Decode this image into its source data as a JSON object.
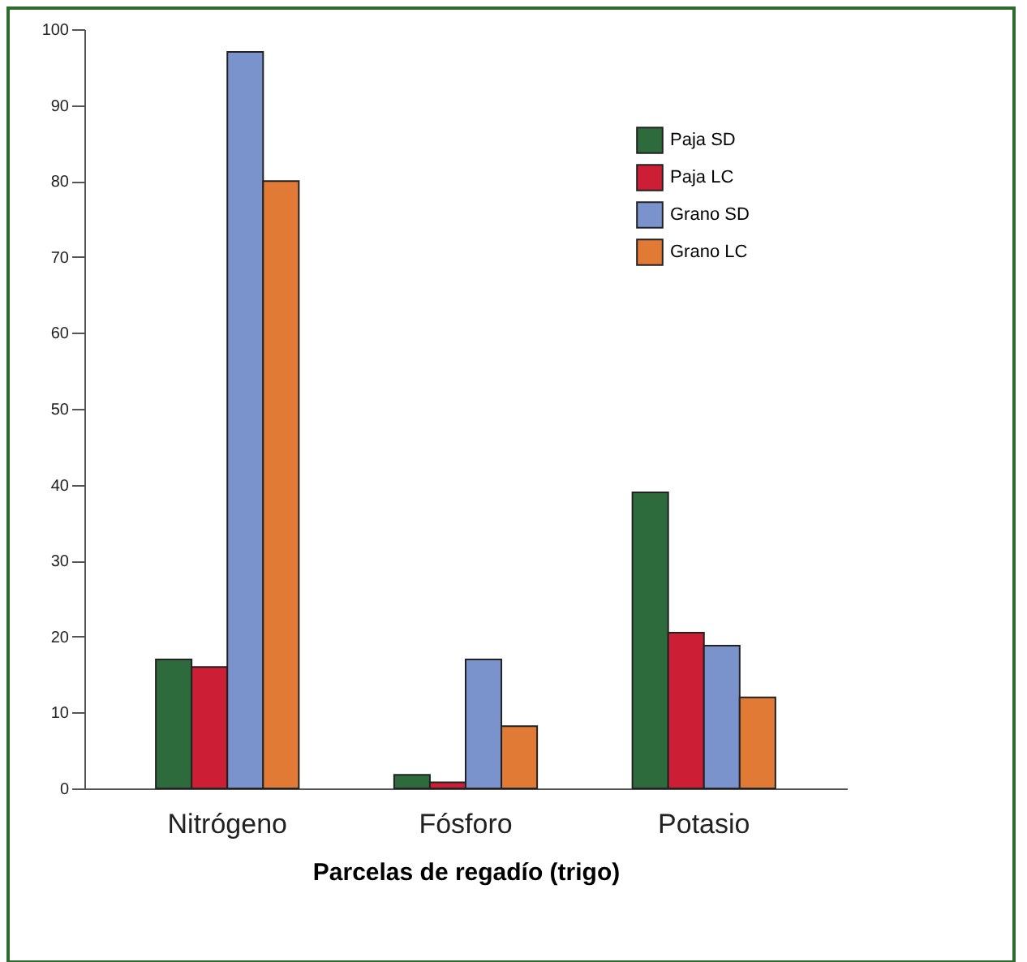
{
  "chart_data": {
    "type": "bar",
    "xlabel": "Parcelas de regadío (trigo)",
    "categories": [
      "Nitrógeno",
      "Fósforo",
      "Potasio"
    ],
    "series": [
      {
        "name": "Paja SD",
        "color": "#2e6b3c",
        "values": [
          17,
          1.8,
          39
        ]
      },
      {
        "name": "Paja LC",
        "color": "#cc1e34",
        "values": [
          16,
          0.8,
          20.5
        ]
      },
      {
        "name": "Grano SD",
        "color": "#7b93cc",
        "values": [
          97,
          17,
          18.8
        ]
      },
      {
        "name": "Grano LC",
        "color": "#e07a34",
        "values": [
          80,
          8.2,
          12
        ]
      }
    ],
    "ylim": [
      0,
      100
    ],
    "yticks": [
      0,
      10,
      20,
      30,
      40,
      50,
      60,
      70,
      80,
      90,
      100
    ],
    "grid": false,
    "legend": "top right"
  }
}
